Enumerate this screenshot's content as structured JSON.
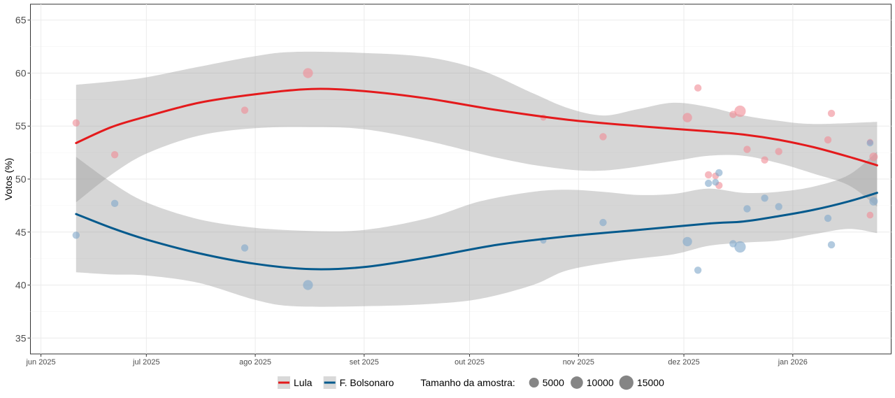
{
  "chart_data": {
    "type": "scatter",
    "title": "",
    "xlabel": "",
    "ylabel": "Votos (%)",
    "ylim": [
      33.5,
      66.5
    ],
    "y_ticks": [
      35,
      40,
      45,
      50,
      55,
      60,
      65
    ],
    "x_domain_days": [
      -3,
      242
    ],
    "x_ticks": [
      {
        "label": "jun 2025",
        "day": 0
      },
      {
        "label": "jul 2025",
        "day": 30
      },
      {
        "label": "ago 2025",
        "day": 61
      },
      {
        "label": "set 2025",
        "day": 92
      },
      {
        "label": "out 2025",
        "day": 122
      },
      {
        "label": "nov 2025",
        "day": 153
      },
      {
        "label": "dez 2025",
        "day": 183
      },
      {
        "label": "jan 2026",
        "day": 214
      }
    ],
    "grid": true,
    "series": [
      {
        "name": "Lula",
        "color": "#e41a1c",
        "fit": [
          [
            10,
            53.4
          ],
          [
            20,
            54.9
          ],
          [
            30,
            55.9
          ],
          [
            45,
            57.2
          ],
          [
            61,
            58.0
          ],
          [
            77,
            58.5
          ],
          [
            92,
            58.3
          ],
          [
            110,
            57.6
          ],
          [
            130,
            56.5
          ],
          [
            150,
            55.6
          ],
          [
            170,
            55.0
          ],
          [
            190,
            54.5
          ],
          [
            200,
            54.2
          ],
          [
            210,
            53.7
          ],
          [
            220,
            53.0
          ],
          [
            230,
            52.1
          ],
          [
            238,
            51.3
          ]
        ],
        "ci_upper": [
          [
            10,
            58.9
          ],
          [
            20,
            59.2
          ],
          [
            30,
            59.6
          ],
          [
            45,
            60.6
          ],
          [
            61,
            61.6
          ],
          [
            72,
            62.0
          ],
          [
            92,
            61.9
          ],
          [
            110,
            61.5
          ],
          [
            125,
            60.3
          ],
          [
            140,
            58.1
          ],
          [
            150,
            56.7
          ],
          [
            160,
            56.0
          ],
          [
            170,
            56.6
          ],
          [
            180,
            57.2
          ],
          [
            190,
            56.8
          ],
          [
            200,
            56.0
          ],
          [
            210,
            55.5
          ],
          [
            220,
            55.2
          ],
          [
            238,
            55.4
          ]
        ],
        "ci_lower": [
          [
            10,
            47.8
          ],
          [
            20,
            50.4
          ],
          [
            30,
            52.4
          ],
          [
            45,
            54.1
          ],
          [
            61,
            54.8
          ],
          [
            77,
            54.9
          ],
          [
            92,
            54.7
          ],
          [
            110,
            53.6
          ],
          [
            130,
            52.0
          ],
          [
            145,
            51.1
          ],
          [
            160,
            50.8
          ],
          [
            180,
            51.7
          ],
          [
            190,
            52.2
          ],
          [
            200,
            52.2
          ],
          [
            210,
            51.5
          ],
          [
            220,
            50.5
          ],
          [
            230,
            49.4
          ],
          [
            238,
            47.4
          ]
        ],
        "points": [
          {
            "day": 10,
            "y": 55.3,
            "n": 2000
          },
          {
            "day": 21,
            "y": 52.3,
            "n": 2000
          },
          {
            "day": 58,
            "y": 56.5,
            "n": 2000
          },
          {
            "day": 76,
            "y": 60.0,
            "n": 6000
          },
          {
            "day": 143,
            "y": 55.8,
            "n": 1000
          },
          {
            "day": 160,
            "y": 54.0,
            "n": 2000
          },
          {
            "day": 184,
            "y": 55.8,
            "n": 5000
          },
          {
            "day": 187,
            "y": 58.6,
            "n": 2000
          },
          {
            "day": 190,
            "y": 50.4,
            "n": 2000
          },
          {
            "day": 192,
            "y": 50.3,
            "n": 1500
          },
          {
            "day": 193,
            "y": 49.4,
            "n": 2000
          },
          {
            "day": 197,
            "y": 56.1,
            "n": 2000
          },
          {
            "day": 199,
            "y": 56.4,
            "n": 9000
          },
          {
            "day": 201,
            "y": 52.8,
            "n": 2000
          },
          {
            "day": 206,
            "y": 51.8,
            "n": 2000
          },
          {
            "day": 210,
            "y": 52.6,
            "n": 2000
          },
          {
            "day": 224,
            "y": 53.7,
            "n": 2000
          },
          {
            "day": 225,
            "y": 56.2,
            "n": 2000
          },
          {
            "day": 236,
            "y": 46.6,
            "n": 1500
          },
          {
            "day": 236,
            "y": 53.5,
            "n": 1000
          },
          {
            "day": 237,
            "y": 52.1,
            "n": 3500
          }
        ]
      },
      {
        "name": "F. Bolsonaro",
        "color": "#045a8d",
        "fit": [
          [
            10,
            46.7
          ],
          [
            20,
            45.4
          ],
          [
            30,
            44.3
          ],
          [
            45,
            43.0
          ],
          [
            61,
            42.0
          ],
          [
            77,
            41.5
          ],
          [
            92,
            41.7
          ],
          [
            110,
            42.6
          ],
          [
            130,
            43.8
          ],
          [
            150,
            44.6
          ],
          [
            170,
            45.2
          ],
          [
            190,
            45.8
          ],
          [
            200,
            46.0
          ],
          [
            210,
            46.5
          ],
          [
            220,
            47.1
          ],
          [
            230,
            47.9
          ],
          [
            238,
            48.7
          ]
        ],
        "ci_upper": [
          [
            10,
            52.1
          ],
          [
            20,
            49.7
          ],
          [
            30,
            47.8
          ],
          [
            45,
            46.2
          ],
          [
            61,
            45.4
          ],
          [
            77,
            45.1
          ],
          [
            92,
            45.2
          ],
          [
            110,
            46.3
          ],
          [
            125,
            47.9
          ],
          [
            140,
            48.8
          ],
          [
            150,
            49.0
          ],
          [
            160,
            48.8
          ],
          [
            170,
            48.5
          ],
          [
            180,
            48.6
          ],
          [
            190,
            49.1
          ],
          [
            200,
            48.7
          ],
          [
            210,
            48.8
          ],
          [
            220,
            49.3
          ],
          [
            230,
            50.4
          ],
          [
            238,
            52.6
          ]
        ],
        "ci_lower": [
          [
            10,
            41.2
          ],
          [
            20,
            41.0
          ],
          [
            30,
            40.9
          ],
          [
            45,
            40.2
          ],
          [
            61,
            38.6
          ],
          [
            72,
            38.0
          ],
          [
            92,
            38.0
          ],
          [
            110,
            38.2
          ],
          [
            125,
            38.7
          ],
          [
            140,
            40.0
          ],
          [
            150,
            41.4
          ],
          [
            165,
            42.3
          ],
          [
            180,
            42.9
          ],
          [
            190,
            43.7
          ],
          [
            200,
            44.0
          ],
          [
            210,
            44.2
          ],
          [
            220,
            44.8
          ],
          [
            230,
            45.3
          ],
          [
            238,
            44.9
          ]
        ],
        "points": [
          {
            "day": 10,
            "y": 44.7,
            "n": 2000
          },
          {
            "day": 21,
            "y": 47.7,
            "n": 2000
          },
          {
            "day": 58,
            "y": 43.5,
            "n": 2000
          },
          {
            "day": 76,
            "y": 40.0,
            "n": 6000
          },
          {
            "day": 143,
            "y": 44.2,
            "n": 1000
          },
          {
            "day": 160,
            "y": 45.9,
            "n": 2000
          },
          {
            "day": 184,
            "y": 44.1,
            "n": 5000
          },
          {
            "day": 187,
            "y": 41.4,
            "n": 2000
          },
          {
            "day": 190,
            "y": 49.6,
            "n": 2000
          },
          {
            "day": 192,
            "y": 49.7,
            "n": 1500
          },
          {
            "day": 193,
            "y": 50.6,
            "n": 2000
          },
          {
            "day": 197,
            "y": 43.9,
            "n": 2000
          },
          {
            "day": 199,
            "y": 43.6,
            "n": 9000
          },
          {
            "day": 201,
            "y": 47.2,
            "n": 2000
          },
          {
            "day": 206,
            "y": 48.2,
            "n": 2000
          },
          {
            "day": 210,
            "y": 47.4,
            "n": 2000
          },
          {
            "day": 224,
            "y": 46.3,
            "n": 2000
          },
          {
            "day": 225,
            "y": 43.8,
            "n": 2000
          },
          {
            "day": 236,
            "y": 53.4,
            "n": 1500
          },
          {
            "day": 237,
            "y": 47.9,
            "n": 3500
          }
        ]
      }
    ],
    "legend": {
      "position": "bottom",
      "series_items": [
        {
          "label": "Lula",
          "color": "#e41a1c"
        },
        {
          "label": "F. Bolsonaro",
          "color": "#045a8d"
        }
      ],
      "size_title": "Tamanho da amostra:",
      "size_items": [
        {
          "label": "5000",
          "n": 5000
        },
        {
          "label": "10000",
          "n": 10000
        },
        {
          "label": "15000",
          "n": 15000
        }
      ]
    }
  }
}
